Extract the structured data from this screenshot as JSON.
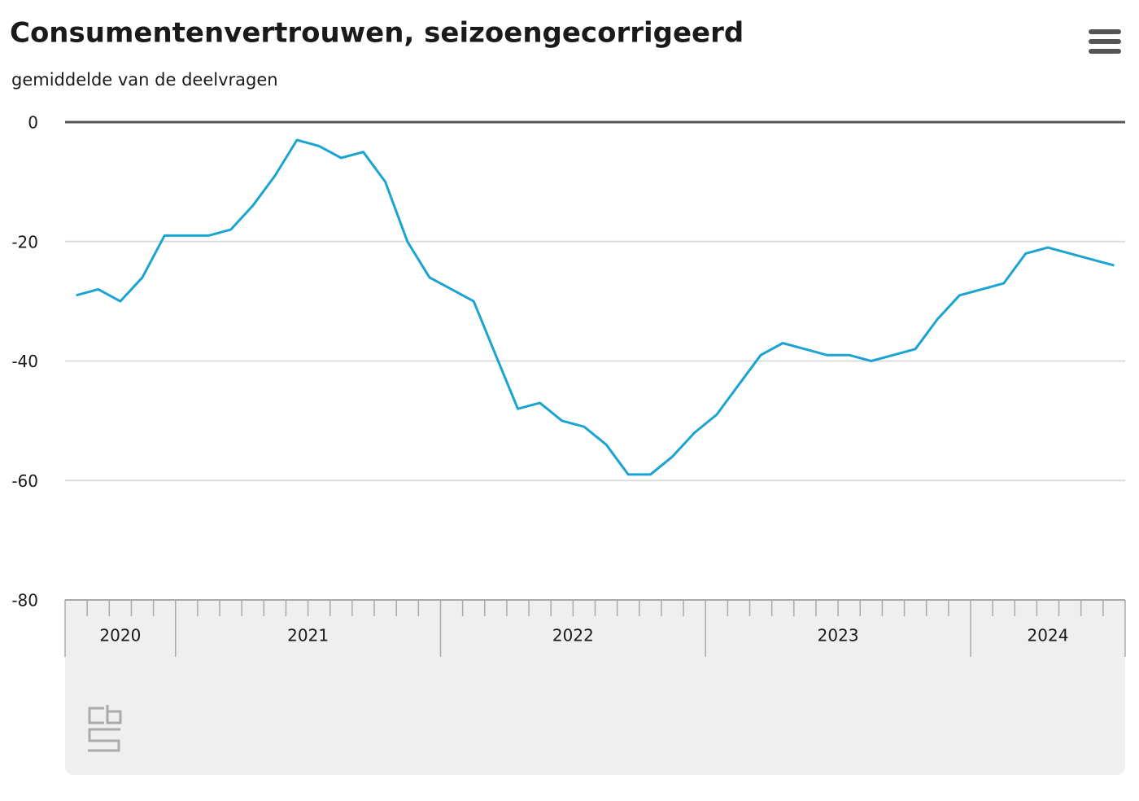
{
  "chart_data": {
    "type": "line",
    "title": "Consumentenvertrouwen, seizoengecorrigeerd",
    "subtitle": "gemiddelde van de deelvragen",
    "categories": [
      "2020",
      null,
      null,
      null,
      null,
      "2021",
      null,
      null,
      null,
      null,
      null,
      null,
      null,
      null,
      null,
      null,
      null,
      "2022",
      null,
      null,
      null,
      null,
      null,
      null,
      null,
      null,
      null,
      null,
      null,
      "2023",
      null,
      null,
      null,
      null,
      null,
      null,
      null,
      null,
      null,
      null,
      null,
      "2024",
      null,
      null,
      null,
      null,
      null,
      null
    ],
    "series": [
      {
        "name": "Consumentenvertrouwen",
        "color": "#1ba3d1",
        "values": [
          -29,
          -28,
          -30,
          -26,
          -19,
          -19,
          -19,
          -18,
          -14,
          -9,
          -3,
          -4,
          -6,
          -5,
          -10,
          -20,
          -26,
          -28,
          -30,
          -39,
          -48,
          -47,
          -50,
          -51,
          -54,
          -59,
          -59,
          -56,
          -52,
          -49,
          -44,
          -39,
          -37,
          -38,
          -39,
          -39,
          -40,
          -39,
          -38,
          -33,
          -29,
          -28,
          -27,
          -22,
          -21,
          -22,
          -23,
          -24
        ]
      }
    ],
    "ylim": [
      -80,
      0
    ],
    "yticks": [
      0,
      -20,
      -40,
      -60,
      -80
    ],
    "grid": true
  }
}
